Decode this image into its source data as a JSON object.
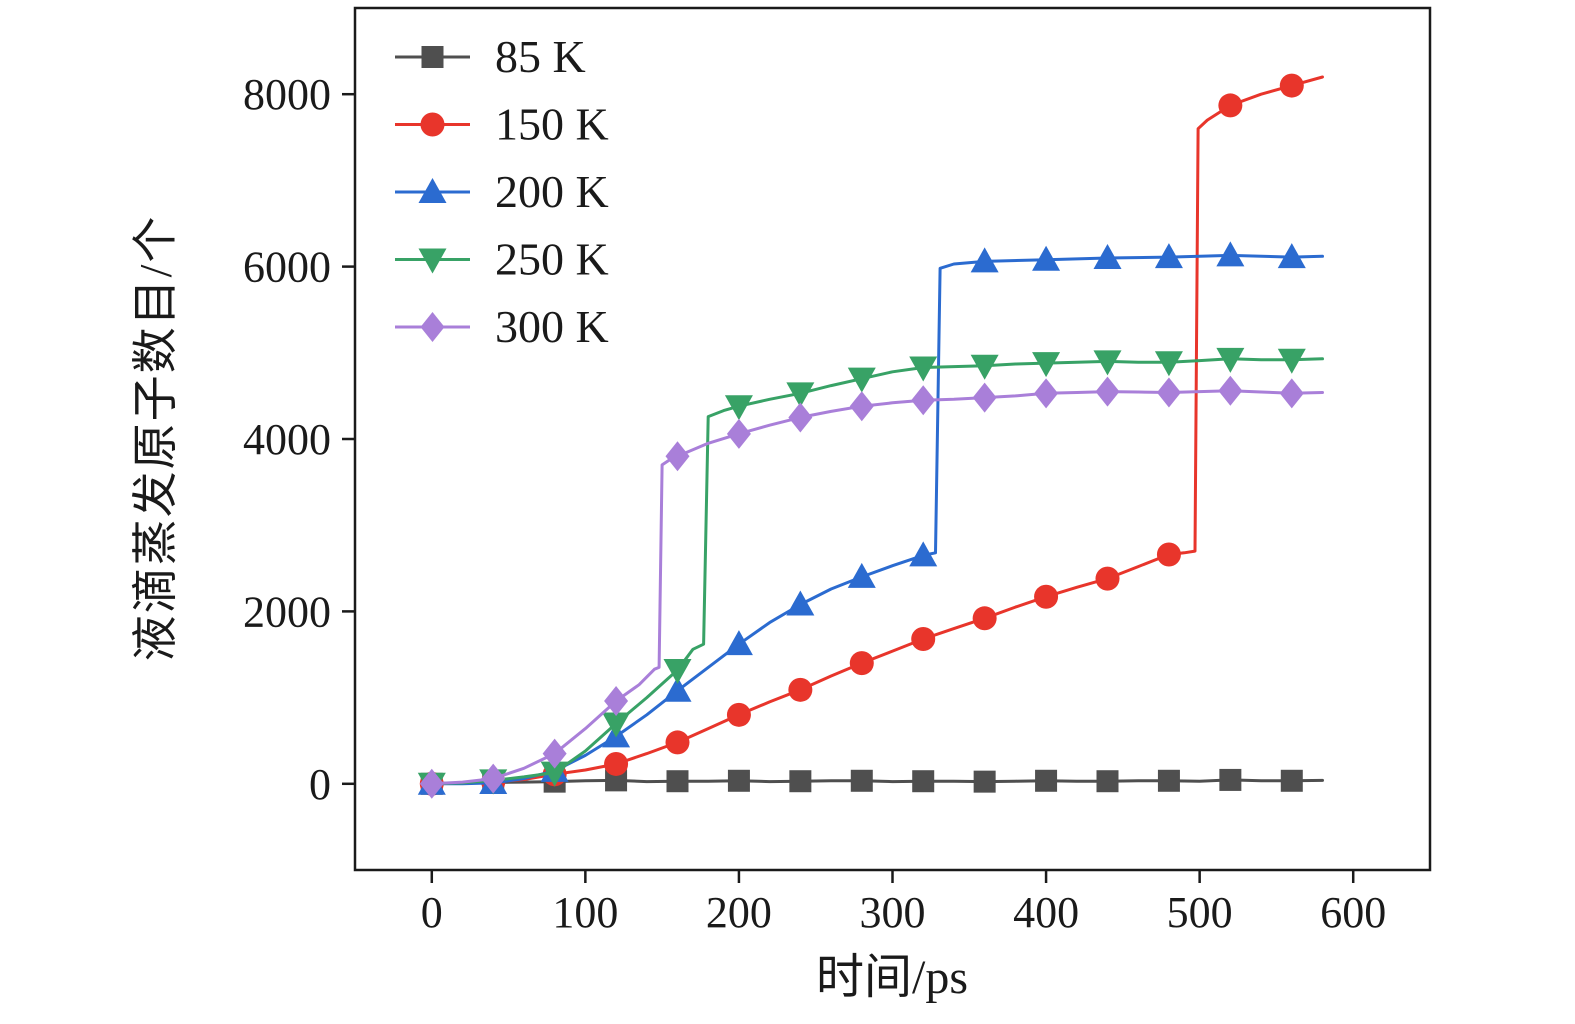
{
  "chart_data": {
    "type": "line",
    "title": "",
    "xlabel": "时间/ps",
    "ylabel": "液滴蒸发原子数目/个",
    "xlim": [
      -50,
      650
    ],
    "ylim": [
      -1000,
      9000
    ],
    "xticks": [
      0,
      100,
      200,
      300,
      400,
      500,
      600
    ],
    "yticks": [
      0,
      2000,
      4000,
      6000,
      8000
    ],
    "grid": false,
    "legend_position": "top-left",
    "frame_color": "#1a1a1a",
    "series": [
      {
        "name": "85 K",
        "color": "#4f4f4f",
        "marker": "square",
        "markers": [
          [
            0,
            0
          ],
          [
            40,
            15
          ],
          [
            80,
            25
          ],
          [
            120,
            40
          ],
          [
            160,
            30
          ],
          [
            200,
            35
          ],
          [
            240,
            30
          ],
          [
            280,
            35
          ],
          [
            320,
            30
          ],
          [
            360,
            25
          ],
          [
            400,
            35
          ],
          [
            440,
            30
          ],
          [
            480,
            35
          ],
          [
            520,
            45
          ],
          [
            560,
            35
          ]
        ],
        "line": [
          [
            0,
            0
          ],
          [
            20,
            10
          ],
          [
            40,
            15
          ],
          [
            60,
            20
          ],
          [
            80,
            25
          ],
          [
            100,
            35
          ],
          [
            120,
            40
          ],
          [
            140,
            25
          ],
          [
            160,
            30
          ],
          [
            180,
            30
          ],
          [
            200,
            35
          ],
          [
            220,
            25
          ],
          [
            240,
            30
          ],
          [
            260,
            35
          ],
          [
            280,
            35
          ],
          [
            300,
            25
          ],
          [
            320,
            30
          ],
          [
            340,
            30
          ],
          [
            360,
            25
          ],
          [
            380,
            30
          ],
          [
            400,
            35
          ],
          [
            420,
            30
          ],
          [
            440,
            30
          ],
          [
            460,
            35
          ],
          [
            480,
            35
          ],
          [
            500,
            30
          ],
          [
            520,
            45
          ],
          [
            540,
            35
          ],
          [
            560,
            35
          ],
          [
            580,
            40
          ]
        ]
      },
      {
        "name": "150 K",
        "color": "#e8352b",
        "marker": "circle",
        "markers": [
          [
            0,
            0
          ],
          [
            40,
            20
          ],
          [
            80,
            110
          ],
          [
            120,
            230
          ],
          [
            160,
            480
          ],
          [
            200,
            800
          ],
          [
            240,
            1090
          ],
          [
            280,
            1400
          ],
          [
            320,
            1680
          ],
          [
            360,
            1920
          ],
          [
            400,
            2170
          ],
          [
            440,
            2380
          ],
          [
            480,
            2660
          ],
          [
            520,
            7870
          ],
          [
            560,
            8100
          ]
        ],
        "line": [
          [
            0,
            0
          ],
          [
            40,
            20
          ],
          [
            60,
            50
          ],
          [
            80,
            110
          ],
          [
            100,
            160
          ],
          [
            120,
            230
          ],
          [
            140,
            350
          ],
          [
            160,
            480
          ],
          [
            180,
            640
          ],
          [
            200,
            800
          ],
          [
            220,
            950
          ],
          [
            240,
            1090
          ],
          [
            260,
            1250
          ],
          [
            280,
            1400
          ],
          [
            300,
            1540
          ],
          [
            320,
            1680
          ],
          [
            340,
            1800
          ],
          [
            360,
            1920
          ],
          [
            380,
            2050
          ],
          [
            400,
            2170
          ],
          [
            420,
            2280
          ],
          [
            440,
            2380
          ],
          [
            460,
            2520
          ],
          [
            480,
            2660
          ],
          [
            490,
            2680
          ],
          [
            497,
            2700
          ],
          [
            499,
            7600
          ],
          [
            505,
            7700
          ],
          [
            520,
            7870
          ],
          [
            540,
            8000
          ],
          [
            560,
            8100
          ],
          [
            580,
            8200
          ]
        ]
      },
      {
        "name": "200 K",
        "color": "#2b6bd0",
        "marker": "triangle-up",
        "markers": [
          [
            0,
            0
          ],
          [
            40,
            10
          ],
          [
            80,
            150
          ],
          [
            120,
            550
          ],
          [
            160,
            1080
          ],
          [
            200,
            1620
          ],
          [
            240,
            2080
          ],
          [
            280,
            2400
          ],
          [
            320,
            2650
          ],
          [
            360,
            6060
          ],
          [
            400,
            6080
          ],
          [
            440,
            6100
          ],
          [
            480,
            6110
          ],
          [
            520,
            6130
          ],
          [
            560,
            6110
          ]
        ],
        "line": [
          [
            0,
            0
          ],
          [
            20,
            0
          ],
          [
            40,
            10
          ],
          [
            60,
            60
          ],
          [
            80,
            150
          ],
          [
            100,
            330
          ],
          [
            120,
            550
          ],
          [
            140,
            800
          ],
          [
            160,
            1080
          ],
          [
            180,
            1350
          ],
          [
            200,
            1620
          ],
          [
            220,
            1870
          ],
          [
            240,
            2080
          ],
          [
            260,
            2260
          ],
          [
            280,
            2400
          ],
          [
            300,
            2530
          ],
          [
            320,
            2650
          ],
          [
            328,
            2680
          ],
          [
            331,
            5980
          ],
          [
            340,
            6030
          ],
          [
            360,
            6060
          ],
          [
            400,
            6080
          ],
          [
            440,
            6100
          ],
          [
            480,
            6110
          ],
          [
            520,
            6130
          ],
          [
            560,
            6110
          ],
          [
            580,
            6120
          ]
        ]
      },
      {
        "name": "250 K",
        "color": "#38a266",
        "marker": "triangle-down",
        "markers": [
          [
            0,
            0
          ],
          [
            40,
            40
          ],
          [
            80,
            130
          ],
          [
            120,
            700
          ],
          [
            160,
            1320
          ],
          [
            200,
            4380
          ],
          [
            240,
            4530
          ],
          [
            280,
            4700
          ],
          [
            320,
            4830
          ],
          [
            360,
            4850
          ],
          [
            400,
            4880
          ],
          [
            440,
            4900
          ],
          [
            480,
            4890
          ],
          [
            520,
            4930
          ],
          [
            560,
            4920
          ]
        ],
        "line": [
          [
            0,
            0
          ],
          [
            20,
            10
          ],
          [
            40,
            40
          ],
          [
            60,
            80
          ],
          [
            80,
            130
          ],
          [
            100,
            380
          ],
          [
            120,
            700
          ],
          [
            140,
            1000
          ],
          [
            160,
            1320
          ],
          [
            170,
            1560
          ],
          [
            177,
            1620
          ],
          [
            180,
            4260
          ],
          [
            190,
            4330
          ],
          [
            200,
            4380
          ],
          [
            220,
            4460
          ],
          [
            240,
            4530
          ],
          [
            260,
            4620
          ],
          [
            280,
            4700
          ],
          [
            300,
            4780
          ],
          [
            320,
            4830
          ],
          [
            340,
            4840
          ],
          [
            360,
            4850
          ],
          [
            380,
            4870
          ],
          [
            400,
            4880
          ],
          [
            420,
            4890
          ],
          [
            440,
            4900
          ],
          [
            460,
            4890
          ],
          [
            480,
            4890
          ],
          [
            500,
            4910
          ],
          [
            520,
            4930
          ],
          [
            540,
            4920
          ],
          [
            560,
            4920
          ],
          [
            580,
            4930
          ]
        ]
      },
      {
        "name": "300 K",
        "color": "#a97fd9",
        "marker": "diamond",
        "markers": [
          [
            0,
            0
          ],
          [
            40,
            60
          ],
          [
            80,
            350
          ],
          [
            120,
            960
          ],
          [
            160,
            3800
          ],
          [
            200,
            4060
          ],
          [
            240,
            4250
          ],
          [
            280,
            4380
          ],
          [
            320,
            4450
          ],
          [
            360,
            4480
          ],
          [
            400,
            4530
          ],
          [
            440,
            4550
          ],
          [
            480,
            4540
          ],
          [
            520,
            4560
          ],
          [
            560,
            4530
          ]
        ],
        "line": [
          [
            0,
            0
          ],
          [
            20,
            20
          ],
          [
            40,
            60
          ],
          [
            60,
            180
          ],
          [
            80,
            350
          ],
          [
            100,
            640
          ],
          [
            120,
            960
          ],
          [
            135,
            1150
          ],
          [
            145,
            1330
          ],
          [
            148,
            1350
          ],
          [
            150,
            3700
          ],
          [
            155,
            3760
          ],
          [
            160,
            3800
          ],
          [
            180,
            3950
          ],
          [
            200,
            4060
          ],
          [
            220,
            4160
          ],
          [
            240,
            4250
          ],
          [
            260,
            4320
          ],
          [
            280,
            4380
          ],
          [
            300,
            4420
          ],
          [
            320,
            4450
          ],
          [
            340,
            4460
          ],
          [
            360,
            4480
          ],
          [
            380,
            4500
          ],
          [
            400,
            4530
          ],
          [
            420,
            4540
          ],
          [
            440,
            4550
          ],
          [
            460,
            4545
          ],
          [
            480,
            4540
          ],
          [
            500,
            4550
          ],
          [
            520,
            4560
          ],
          [
            540,
            4545
          ],
          [
            560,
            4530
          ],
          [
            580,
            4540
          ]
        ]
      }
    ]
  }
}
